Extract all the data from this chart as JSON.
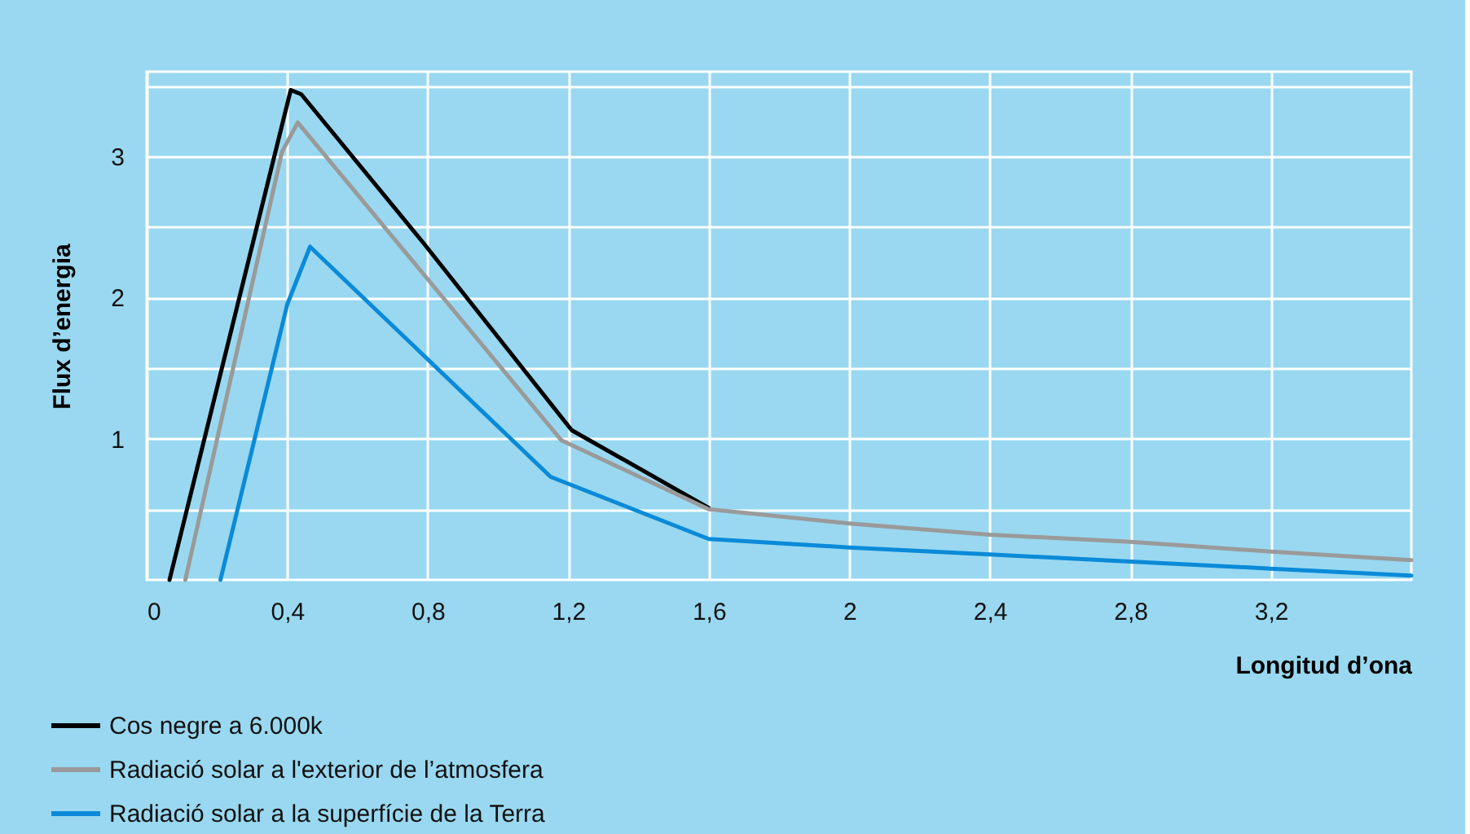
{
  "chart_data": {
    "type": "line",
    "xlabel": "Longitud d’ona",
    "ylabel": "Flux d’energia",
    "xlim": [
      0,
      3.6
    ],
    "ylim": [
      0,
      3.6
    ],
    "xticks": [
      0,
      {
        "value": 0.4,
        "label": "0,4"
      },
      {
        "value": 0.8,
        "label": "0,8"
      },
      {
        "value": 1.2,
        "label": "1,2"
      },
      {
        "value": 1.6,
        "label": "1,6"
      },
      2,
      {
        "value": 2.4,
        "label": "2,4"
      },
      {
        "value": 2.8,
        "label": "2,8"
      },
      {
        "value": 3.2,
        "label": "3,2"
      }
    ],
    "yticks": [
      {
        "value": 0.5,
        "label": null
      },
      1,
      {
        "value": 1.5,
        "label": null
      },
      2,
      {
        "value": 2.5,
        "label": null
      },
      3,
      {
        "value": 3.5,
        "label": null
      }
    ],
    "grid": true,
    "legend": "bottom left",
    "line_style": "solid",
    "marker": "none",
    "series": [
      {
        "name": "Cos negre a 6.000k",
        "color": "#000000",
        "x": [
          0.065,
          0.41,
          0.44,
          0.79,
          1.21,
          1.6
        ],
        "values": [
          0,
          3.47,
          3.44,
          2.38,
          1.06,
          0.51
        ]
      },
      {
        "name": "Radiació solar a l'exterior de l’atmosfera",
        "color": "#9a9a9a",
        "x": [
          0.11,
          0.385,
          0.43,
          1.18,
          1.6,
          2.0,
          2.4,
          2.8,
          3.2,
          3.6
        ],
        "values": [
          0,
          3.03,
          3.24,
          0.99,
          0.5,
          0.4,
          0.32,
          0.27,
          0.2,
          0.14
        ]
      },
      {
        "name": "Radiació solar a la superfície de la Terra",
        "color": "#0a8ad8",
        "x": [
          0.21,
          0.4,
          0.465,
          1.15,
          1.6,
          2.0,
          2.4,
          2.8,
          3.2,
          3.6
        ],
        "values": [
          0,
          1.95,
          2.36,
          0.73,
          0.29,
          0.23,
          0.18,
          0.13,
          0.08,
          0.03
        ]
      }
    ]
  }
}
